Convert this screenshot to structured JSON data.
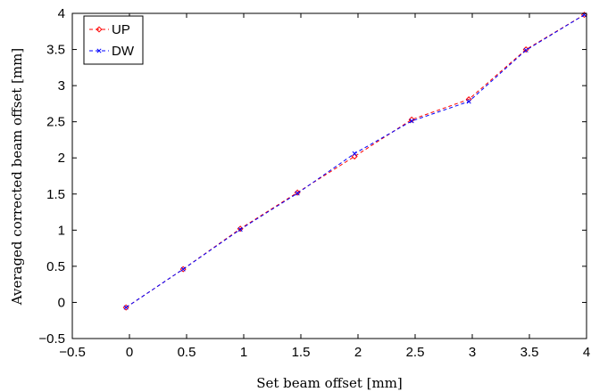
{
  "chart_data": {
    "type": "line",
    "xlabel": "Set beam offset [mm]",
    "ylabel": "Averaged corrected beam offset [mm]",
    "xlim": [
      -0.5,
      4
    ],
    "ylim": [
      -0.5,
      4
    ],
    "xticks": [
      -0.5,
      0,
      0.5,
      1,
      1.5,
      2,
      2.5,
      3,
      3.5,
      4
    ],
    "xtick_labels": [
      "−0.5",
      "0",
      "0.5",
      "1",
      "1.5",
      "2",
      "2.5",
      "3",
      "3.5",
      "4"
    ],
    "yticks": [
      -0.5,
      0,
      0.5,
      1,
      1.5,
      2,
      2.5,
      3,
      3.5,
      4
    ],
    "ytick_labels": [
      "−0.5",
      "0",
      "0.5",
      "1",
      "1.5",
      "2",
      "2.5",
      "3",
      "3.5",
      "4"
    ],
    "grid": false,
    "legend_position": "top-left",
    "series": [
      {
        "name": "UP",
        "color": "#ff0000",
        "line_style": "dashed",
        "marker": "diamond",
        "x": [
          -0.03,
          0.47,
          0.97,
          1.47,
          1.97,
          2.47,
          2.97,
          3.47,
          3.98
        ],
        "y": [
          -0.07,
          0.46,
          1.02,
          1.52,
          2.02,
          2.53,
          2.81,
          3.5,
          3.98
        ]
      },
      {
        "name": "DW",
        "color": "#0000ff",
        "line_style": "dashed",
        "marker": "x",
        "x": [
          -0.03,
          0.47,
          0.97,
          1.47,
          1.97,
          2.47,
          2.97,
          3.47,
          3.98
        ],
        "y": [
          -0.07,
          0.46,
          1.01,
          1.51,
          2.06,
          2.51,
          2.78,
          3.49,
          3.98
        ]
      }
    ]
  }
}
